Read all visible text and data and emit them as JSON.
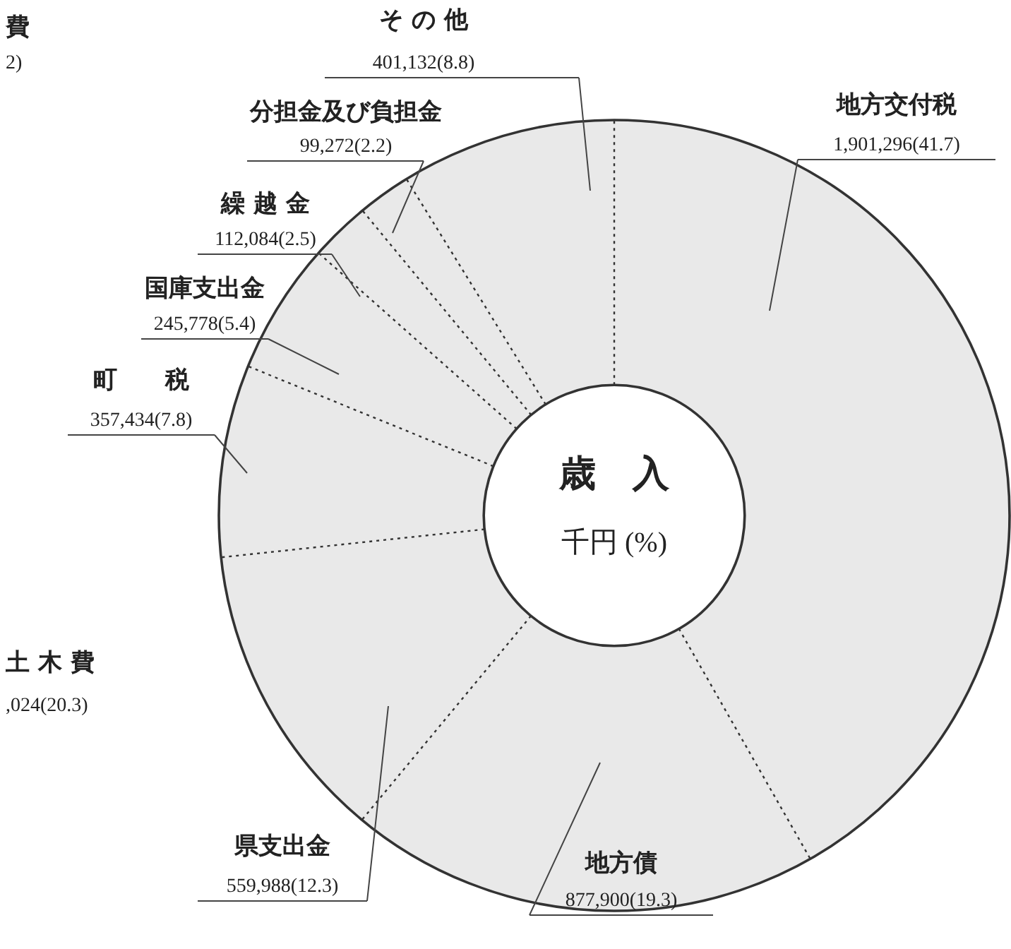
{
  "chart_data": {
    "type": "donut",
    "title": "歳　入",
    "subtitle": "千円 (%)",
    "categories": [
      "地方交付税",
      "地方債",
      "県支出金",
      "町　　税",
      "国庫支出金",
      "繰 越 金",
      "分担金及び負担金",
      "そ の 他"
    ],
    "values": [
      1901296,
      877900,
      559988,
      357434,
      245778,
      112084,
      99272,
      401132
    ],
    "value_labels": [
      "1,901,296(41.7)",
      "877,900(19.3)",
      "559,988(12.3)",
      "357,434(7.8)",
      "245,778(5.4)",
      "112,084(2.5)",
      "99,272(2.2)",
      "401,132(8.8)"
    ],
    "colors": [
      "#e9e9e9",
      "#e9e9e9",
      "#e9e9e9",
      "#e9e9e9",
      "#e9e9e9",
      "#e9e9e9",
      "#e9e9e9",
      "#e9e9e9"
    ],
    "annotations": [
      "費",
      "2)",
      "土 木 費",
      ",024(20.3)"
    ],
    "legend": false
  }
}
